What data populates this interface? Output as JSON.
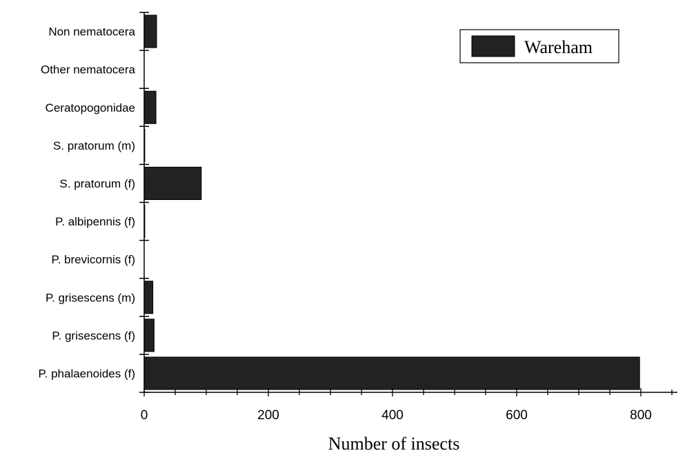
{
  "chart_data": {
    "type": "bar",
    "orientation": "horizontal",
    "categories": [
      "Non nematocera",
      "Other nematocera",
      "Ceratopogonidae",
      "S. pratorum (m)",
      "S. pratorum (f)",
      "P. albipennis (f)",
      "P. brevicornis (f)",
      "P. grisescens (m)",
      "P. grisescens (f)",
      "P. phalaenoides (f)"
    ],
    "series": [
      {
        "name": "Wareham",
        "values": [
          20,
          0,
          19,
          1,
          92,
          1,
          0,
          14,
          16,
          798
        ]
      }
    ],
    "xlabel": "Number of insects",
    "ylabel": "",
    "xlim": [
      0,
      870
    ],
    "xticks": [
      0,
      200,
      400,
      600,
      800
    ],
    "xtick_labels": [
      "0",
      "200",
      "400",
      "600",
      "800"
    ],
    "grid": false,
    "legend_position": "top-right",
    "colors": {
      "bar": "#222222",
      "axis": "#000000",
      "background": "#ffffff"
    }
  }
}
